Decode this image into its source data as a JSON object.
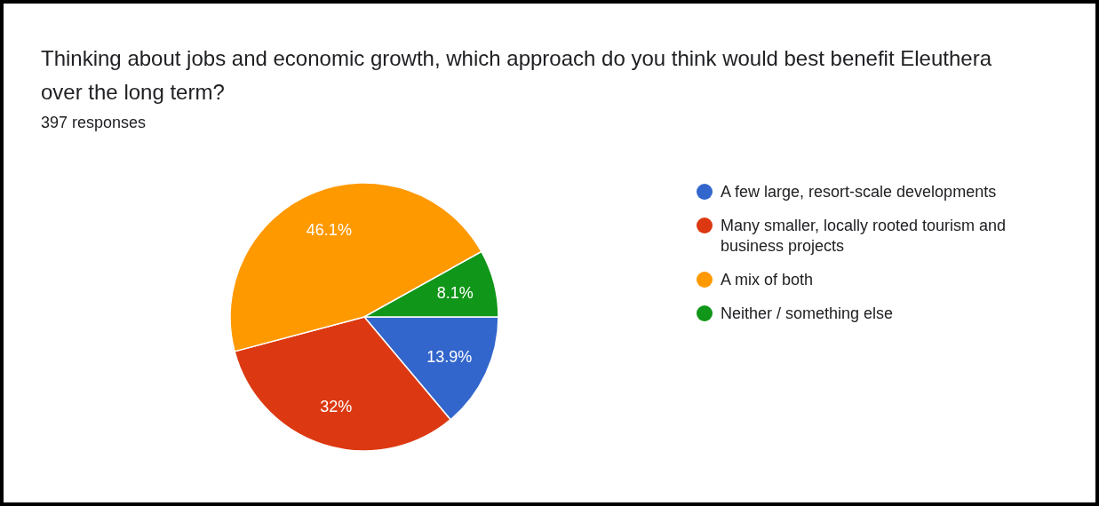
{
  "chart_data": {
    "type": "pie",
    "title": "Thinking about jobs and economic growth, which approach do you think would best benefit Eleuthera over the long term?",
    "subtitle": "397 responses",
    "categories": [
      "A few large, resort-scale developments",
      "Many smaller, locally rooted tourism and business projects",
      "A mix of both",
      "Neither / something else"
    ],
    "values": [
      13.9,
      32,
      46.1,
      8.1
    ],
    "colors": [
      "#3366cc",
      "#dc3912",
      "#ff9900",
      "#109618"
    ],
    "value_labels": [
      "13.9%",
      "32%",
      "46.1%",
      "8.1%"
    ],
    "legend": "right"
  }
}
